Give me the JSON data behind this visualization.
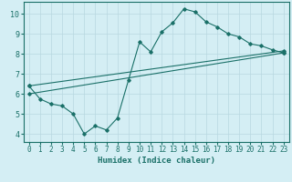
{
  "xlabel": "Humidex (Indice chaleur)",
  "bg_color": "#d4eef4",
  "grid_color": "#b8d8e0",
  "line_color": "#1a7068",
  "xlim": [
    -0.5,
    23.5
  ],
  "ylim": [
    3.6,
    10.6
  ],
  "xticks": [
    0,
    1,
    2,
    3,
    4,
    5,
    6,
    7,
    8,
    9,
    10,
    11,
    12,
    13,
    14,
    15,
    16,
    17,
    18,
    19,
    20,
    21,
    22,
    23
  ],
  "yticks": [
    4,
    5,
    6,
    7,
    8,
    9,
    10
  ],
  "line1_x": [
    0,
    1,
    2,
    3,
    4,
    5,
    6,
    7,
    8,
    9,
    10,
    11,
    12,
    13,
    14,
    15,
    16,
    17,
    18,
    19,
    20,
    21,
    22,
    23
  ],
  "line1_y": [
    6.4,
    5.75,
    5.5,
    5.4,
    5.0,
    4.0,
    4.4,
    4.2,
    4.8,
    6.7,
    8.6,
    8.1,
    9.1,
    9.55,
    10.25,
    10.1,
    9.6,
    9.35,
    9.0,
    8.85,
    8.5,
    8.4,
    8.2,
    8.05
  ],
  "line2_x": [
    0,
    23
  ],
  "line2_y": [
    6.4,
    8.15
  ],
  "line3_x": [
    0,
    23
  ],
  "line3_y": [
    6.0,
    8.05
  ],
  "marker_style": "D",
  "marker_size": 1.8,
  "linewidth": 0.8
}
